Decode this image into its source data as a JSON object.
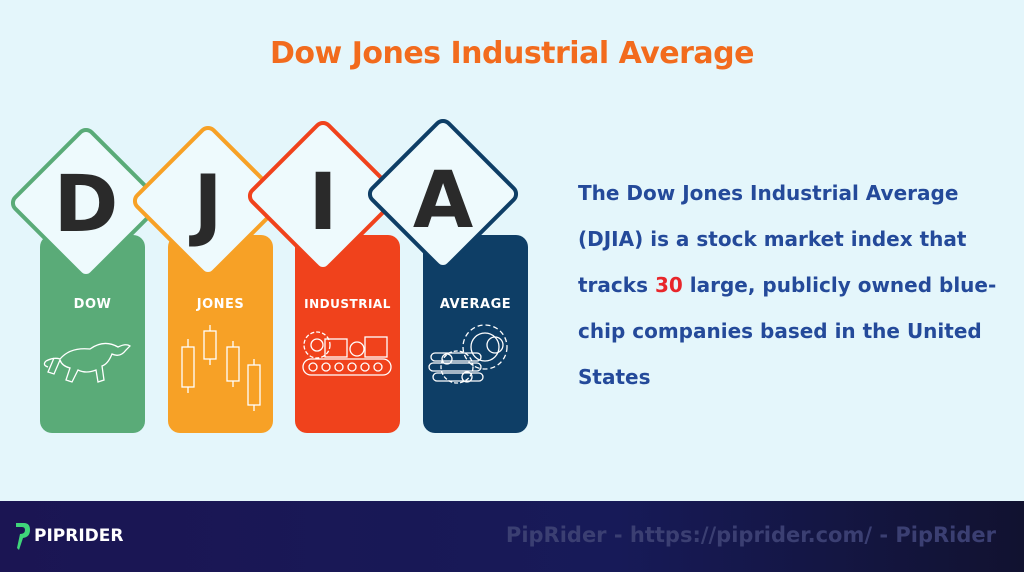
{
  "title": "Dow Jones Industrial Average",
  "cards": [
    {
      "letter": "D",
      "label": "DOW",
      "color": "#5aab78",
      "icon": "bull-icon"
    },
    {
      "letter": "J",
      "label": "JONES",
      "color": "#f7a126",
      "icon": "candlestick-icon"
    },
    {
      "letter": "I",
      "label": "INDUSTRIAL",
      "color": "#f0421c",
      "icon": "conveyor-icon"
    },
    {
      "letter": "A",
      "label": "AVERAGE",
      "color": "#0e3e66",
      "icon": "gears-icon"
    }
  ],
  "description": {
    "before": "The Dow Jones Industrial Average (DJIA) is a stock market index that tracks ",
    "highlight": "30",
    "after": " large, publicly owned blue-chip companies based in the United States"
  },
  "footer": {
    "logo": "PIPRIDER",
    "watermark": "PipRider - https://piprider.com/ - PipRider"
  }
}
